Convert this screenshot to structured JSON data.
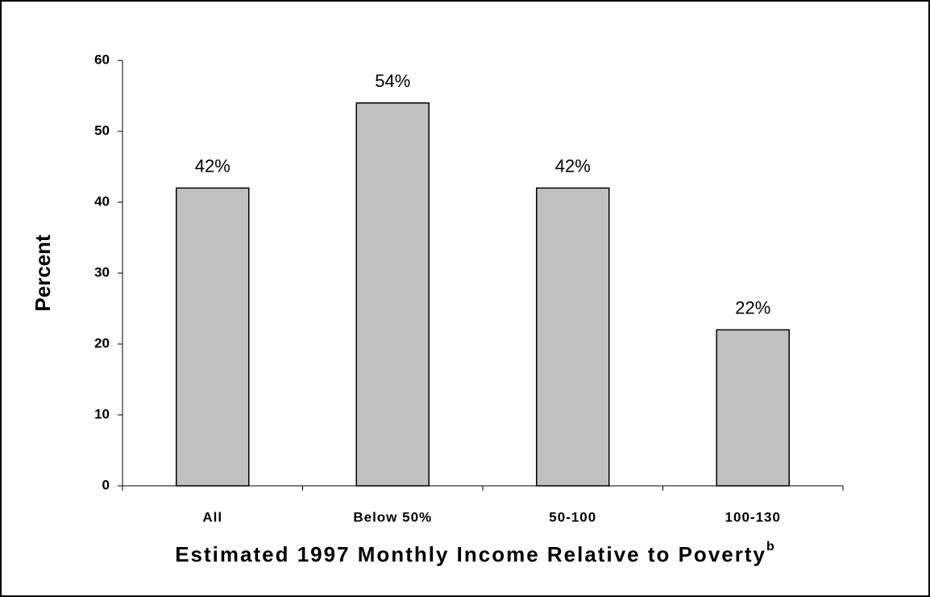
{
  "chart_data": {
    "type": "bar",
    "ylabel": "Percent",
    "xlabel": "Estimated 1997 Monthly Income Relative to Poverty",
    "xlabel_note": "b",
    "categories": [
      "All",
      "Below 50%",
      "50-100",
      "100-130"
    ],
    "values": [
      42,
      54,
      42,
      22
    ],
    "value_labels": [
      "42%",
      "54%",
      "42%",
      "22%"
    ],
    "color": "#c0c0c0",
    "ylim": [
      0,
      60
    ],
    "yticks": [
      0,
      10,
      20,
      30,
      40,
      50,
      60
    ],
    "grid": false
  }
}
